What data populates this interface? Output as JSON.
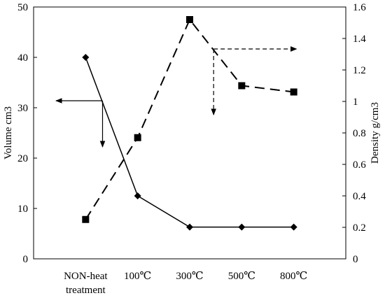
{
  "chart_data": {
    "type": "line",
    "categories": [
      [
        "NON-heat",
        "treatment"
      ],
      [
        "100℃"
      ],
      [
        "300℃"
      ],
      [
        "500℃"
      ],
      [
        "800℃"
      ]
    ],
    "y_left": {
      "label": "Volume cm3",
      "range": [
        0,
        50
      ],
      "ticks": [
        "0",
        "10",
        "20",
        "30",
        "40",
        "50"
      ]
    },
    "y_right": {
      "label": "Density g/cm3",
      "range": [
        0,
        1.6
      ],
      "ticks": [
        "0",
        "0.2",
        "0.4",
        "0.6",
        "0.8",
        "1",
        "1.2",
        "1.4",
        "1.6"
      ]
    },
    "series": [
      {
        "axis": "left",
        "style": "solid",
        "marker": "diamond",
        "values": [
          40,
          12.5,
          6.3,
          6.3,
          6.3
        ]
      },
      {
        "axis": "right",
        "style": "dashed",
        "marker": "square",
        "values": [
          0.25,
          0.77,
          1.52,
          1.1,
          1.06
        ]
      }
    ],
    "annotations": [
      {
        "kind": "solid-arrow",
        "series": 0,
        "points_to": "left axis"
      },
      {
        "kind": "dashed-arrow",
        "series": 1,
        "points_to": "right axis"
      }
    ],
    "grid": false,
    "legend": "none",
    "colors": {
      "line": "#000000",
      "background": "#ffffff"
    }
  }
}
